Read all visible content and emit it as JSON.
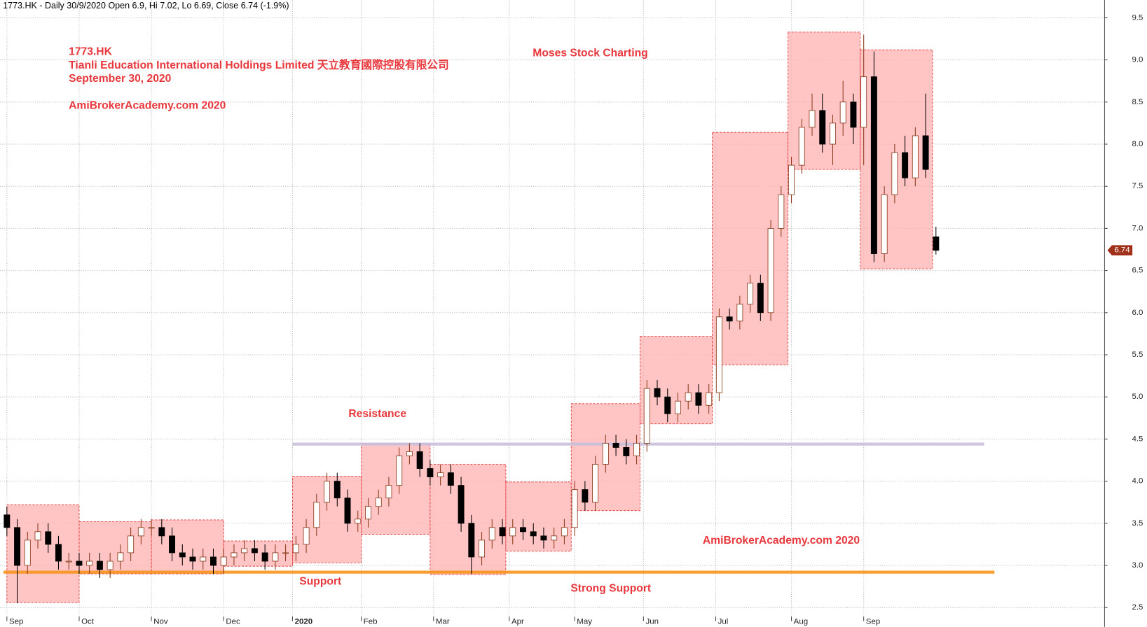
{
  "chart_data": {
    "type": "candlestick",
    "header": "1773.HK - Daily 30/9/2020 Open 6.9, Hi 7.02, Lo 6.69, Close 6.74 (-1.9%)",
    "title_lines": [
      "1773.HK",
      "Tianli Education International Holdings Limited 天立教育國際控股有限公司",
      "September 30, 2020"
    ],
    "site_label": "AmiBrokerAcademy.com  2020",
    "author_label": "Moses Stock Charting",
    "annotations": [
      "Resistance",
      "Support",
      "Strong Support",
      "AmiBrokerAcademy.com  2020"
    ],
    "ylim": [
      2.27,
      9.71
    ],
    "yticks": [
      2.5,
      {
        "value": 3,
        "label": "3.0"
      },
      3.5,
      {
        "value": 4,
        "label": "4.0"
      },
      4.5,
      {
        "value": 5,
        "label": "5.0"
      },
      5.5,
      {
        "value": 6,
        "label": "6.0"
      },
      6.5,
      {
        "value": 7,
        "label": "7.0"
      },
      7.5,
      {
        "value": 8,
        "label": "8.0"
      },
      8.5,
      {
        "value": 9,
        "label": "9.0"
      },
      9.5
    ],
    "xlim": [
      -2,
      319
    ],
    "xticks": [
      {
        "value": 0,
        "label": "Sep"
      },
      {
        "value": 21,
        "label": "Oct"
      },
      {
        "value": 42,
        "label": "Nov"
      },
      {
        "value": 63,
        "label": "Dec"
      },
      {
        "value": 83,
        "label": "2020"
      },
      {
        "value": 103,
        "label": "Feb"
      },
      {
        "value": 124,
        "label": "Mar"
      },
      {
        "value": 146,
        "label": "Apr"
      },
      {
        "value": 165,
        "label": "May"
      },
      {
        "value": 185,
        "label": "Jun"
      },
      {
        "value": 206,
        "label": "Jul"
      },
      {
        "value": 228,
        "label": "Aug"
      },
      {
        "value": 249,
        "label": "Sep"
      }
    ],
    "grid": true,
    "up_color": "#ffffff",
    "down_color": "#000000",
    "wick_color": "#8b3a1a",
    "x": [
      0,
      3,
      6,
      9,
      12,
      15,
      18,
      21,
      24,
      27,
      30,
      33,
      36,
      39,
      42,
      45,
      48,
      51,
      54,
      57,
      60,
      63,
      66,
      69,
      72,
      75,
      78,
      81,
      84,
      87,
      90,
      93,
      96,
      99,
      102,
      105,
      108,
      111,
      114,
      117,
      120,
      123,
      126,
      129,
      132,
      135,
      138,
      141,
      144,
      147,
      150,
      153,
      156,
      159,
      162,
      165,
      168,
      171,
      174,
      177,
      180,
      183,
      186,
      189,
      192,
      195,
      198,
      201,
      204,
      207,
      210,
      213,
      216,
      219,
      222,
      225,
      228,
      231,
      234,
      237,
      240,
      243,
      246,
      249,
      252,
      255,
      258,
      261,
      264,
      267,
      270
    ],
    "open": [
      3.6,
      3.45,
      3.0,
      3.3,
      3.4,
      3.25,
      3.05,
      3.05,
      3.0,
      3.05,
      2.95,
      3.05,
      3.15,
      3.35,
      3.45,
      3.45,
      3.35,
      3.15,
      3.1,
      3.05,
      3.1,
      3.0,
      3.1,
      3.15,
      3.2,
      3.15,
      3.05,
      3.15,
      3.15,
      3.25,
      3.45,
      3.75,
      4.0,
      3.8,
      3.5,
      3.55,
      3.7,
      3.8,
      3.95,
      4.3,
      4.35,
      4.15,
      4.05,
      4.1,
      3.95,
      3.5,
      3.1,
      3.3,
      3.45,
      3.35,
      3.45,
      3.4,
      3.35,
      3.3,
      3.35,
      3.45,
      3.9,
      3.75,
      4.2,
      4.45,
      4.4,
      4.3,
      4.45,
      5.1,
      5.0,
      4.8,
      4.95,
      5.05,
      4.9,
      5.05,
      5.95,
      5.9,
      6.1,
      6.35,
      6.0,
      7.0,
      7.4,
      7.75,
      8.2,
      8.4,
      8.0,
      8.25,
      8.5,
      8.2,
      8.8,
      6.7,
      7.4,
      7.9,
      7.6,
      8.1,
      6.9
    ],
    "high": [
      3.7,
      3.55,
      3.4,
      3.5,
      3.5,
      3.35,
      3.15,
      3.15,
      3.15,
      3.15,
      3.15,
      3.25,
      3.45,
      3.55,
      3.55,
      3.55,
      3.45,
      3.25,
      3.2,
      3.2,
      3.2,
      3.2,
      3.25,
      3.3,
      3.3,
      3.25,
      3.25,
      3.25,
      3.35,
      3.55,
      3.85,
      4.1,
      4.1,
      3.9,
      3.65,
      3.8,
      3.9,
      4.05,
      4.4,
      4.45,
      4.45,
      4.25,
      4.2,
      4.2,
      4.05,
      3.6,
      3.4,
      3.55,
      3.55,
      3.55,
      3.55,
      3.5,
      3.45,
      3.45,
      3.55,
      4.0,
      4.0,
      4.3,
      4.55,
      4.55,
      4.5,
      4.55,
      5.2,
      5.2,
      5.1,
      5.05,
      5.15,
      5.15,
      5.15,
      6.05,
      6.05,
      6.2,
      6.45,
      6.45,
      7.1,
      7.5,
      7.85,
      8.3,
      8.6,
      8.6,
      8.35,
      8.75,
      8.6,
      9.3,
      9.1,
      7.5,
      8.0,
      8.1,
      8.2,
      8.6,
      7.02
    ],
    "low": [
      3.35,
      2.55,
      2.9,
      3.2,
      3.15,
      2.95,
      2.95,
      2.9,
      2.9,
      2.85,
      2.85,
      2.95,
      3.05,
      3.25,
      3.35,
      3.25,
      3.05,
      3.0,
      2.95,
      2.95,
      2.9,
      2.9,
      3.0,
      3.05,
      3.05,
      2.95,
      2.95,
      3.05,
      3.05,
      3.15,
      3.35,
      3.65,
      3.7,
      3.4,
      3.4,
      3.45,
      3.6,
      3.7,
      3.85,
      4.2,
      4.05,
      3.95,
      3.95,
      3.85,
      3.4,
      2.9,
      3.0,
      3.2,
      3.25,
      3.25,
      3.3,
      3.25,
      3.2,
      3.2,
      3.25,
      3.35,
      3.65,
      3.65,
      4.1,
      4.3,
      4.2,
      4.2,
      4.35,
      4.9,
      4.7,
      4.7,
      4.85,
      4.8,
      4.8,
      4.95,
      5.8,
      5.8,
      6.0,
      5.9,
      5.9,
      6.9,
      7.3,
      7.65,
      8.1,
      7.9,
      7.75,
      8.1,
      8.0,
      7.75,
      6.6,
      6.6,
      7.3,
      7.5,
      7.5,
      7.6,
      6.69
    ],
    "close": [
      3.45,
      3.0,
      3.3,
      3.4,
      3.25,
      3.05,
      3.05,
      3.0,
      3.05,
      2.95,
      3.05,
      3.15,
      3.35,
      3.45,
      3.45,
      3.35,
      3.15,
      3.1,
      3.05,
      3.1,
      3.0,
      3.1,
      3.15,
      3.2,
      3.15,
      3.05,
      3.15,
      3.15,
      3.25,
      3.45,
      3.75,
      4.0,
      3.8,
      3.5,
      3.55,
      3.7,
      3.8,
      3.95,
      4.3,
      4.35,
      4.15,
      4.05,
      4.1,
      3.95,
      3.5,
      3.1,
      3.3,
      3.45,
      3.35,
      3.45,
      3.4,
      3.35,
      3.3,
      3.35,
      3.45,
      3.9,
      3.75,
      4.2,
      4.45,
      4.4,
      4.3,
      4.45,
      5.1,
      5.0,
      4.8,
      4.95,
      5.05,
      4.9,
      5.05,
      5.95,
      5.9,
      6.1,
      6.35,
      6.0,
      7.0,
      7.4,
      7.75,
      8.2,
      8.4,
      8.0,
      8.25,
      8.5,
      8.2,
      8.8,
      6.7,
      7.4,
      7.9,
      7.6,
      8.1,
      7.7,
      6.74
    ],
    "boxes": {
      "fill": "#ffb0b0",
      "border": "#e03030",
      "start": [
        0,
        21,
        42,
        63,
        83,
        103,
        123,
        145,
        164,
        184,
        205,
        227,
        248
      ],
      "end": [
        21,
        42,
        63,
        83,
        103,
        123,
        145,
        164,
        184,
        205,
        227,
        248,
        269
      ],
      "high": [
        3.72,
        3.52,
        3.54,
        3.29,
        4.06,
        4.45,
        4.2,
        3.99,
        4.92,
        5.72,
        8.14,
        9.33,
        9.12
      ],
      "low": [
        2.56,
        2.9,
        2.9,
        2.99,
        3.03,
        3.37,
        2.89,
        3.17,
        3.65,
        4.68,
        5.38,
        7.7,
        6.52
      ]
    },
    "lines": [
      {
        "value": 4.44,
        "start": 83,
        "end": 284,
        "color": "#c9c0dc"
      },
      {
        "value": 2.92,
        "start": -1,
        "end": 287,
        "color": "#f7941d"
      }
    ],
    "last_price": 6.74,
    "last_price_color": "#a0301a"
  }
}
